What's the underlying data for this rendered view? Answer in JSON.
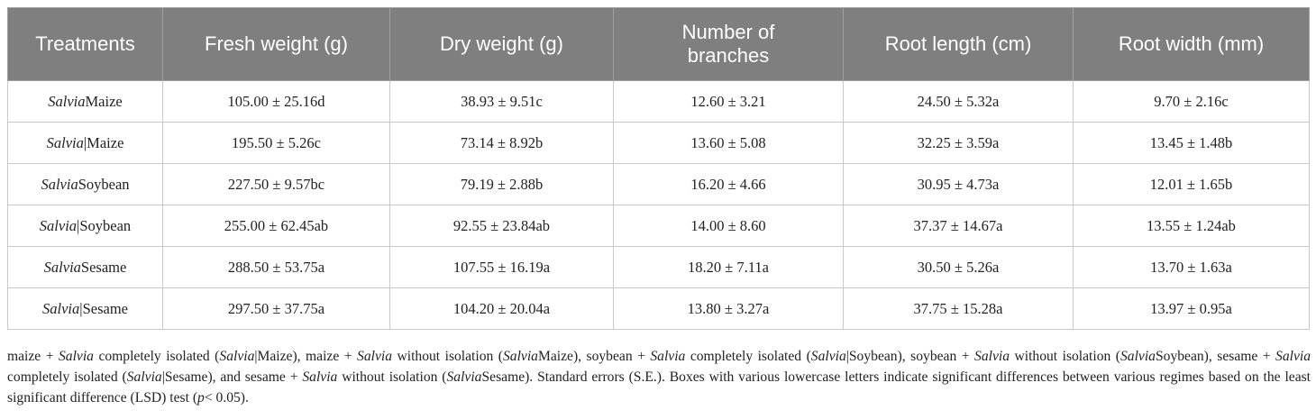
{
  "table": {
    "header": [
      "Treatments",
      "Fresh weight (g)",
      "Dry weight (g)",
      "Number of branches",
      "Root length (cm)",
      "Root width (mm)"
    ],
    "rows": [
      [
        {
          "italic": "Salvia",
          "text": "Maize"
        },
        "105.00 ± 25.16d",
        "38.93 ± 9.51c",
        "12.60 ± 3.21",
        "24.50 ± 5.32a",
        "9.70 ± 2.16c"
      ],
      [
        {
          "italic": "Salvia",
          "text": "|Maize"
        },
        "195.50 ± 5.26c",
        "73.14 ± 8.92b",
        "13.60 ± 5.08",
        "32.25 ± 3.59a",
        "13.45 ± 1.48b"
      ],
      [
        {
          "italic": "Salvia",
          "text": "Soybean"
        },
        "227.50 ± 9.57bc",
        "79.19 ± 2.88b",
        "16.20 ± 4.66",
        "30.95 ± 4.73a",
        "12.01 ± 1.65b"
      ],
      [
        {
          "italic": "Salvia",
          "text": "|Soybean"
        },
        "255.00 ± 62.45ab",
        "92.55 ± 23.84ab",
        "14.00 ± 8.60",
        "37.37 ± 14.67a",
        "13.55 ± 1.24ab"
      ],
      [
        {
          "italic": "Salvia",
          "text": "Sesame"
        },
        "288.50 ± 53.75a",
        "107.55 ± 16.19a",
        "18.20 ± 7.11a",
        "30.50 ± 5.26a",
        "13.70 ± 1.63a"
      ],
      [
        {
          "italic": "Salvia",
          "text": "|Sesame"
        },
        "297.50 ± 37.75a",
        "104.20 ± 20.04a",
        "13.80 ± 3.27a",
        "37.75 ± 15.28a",
        "13.97 ± 0.95a"
      ]
    ]
  },
  "caption": [
    {
      "text": "maize + ",
      "italic": false
    },
    {
      "text": "Salvia",
      "italic": true
    },
    {
      "text": " completely isolated (",
      "italic": false
    },
    {
      "text": "Salvia",
      "italic": true
    },
    {
      "text": "|Maize), maize + ",
      "italic": false
    },
    {
      "text": "Salvia",
      "italic": true
    },
    {
      "text": " without isolation (",
      "italic": false
    },
    {
      "text": "Salvia",
      "italic": true
    },
    {
      "text": "Maize), soybean + ",
      "italic": false
    },
    {
      "text": "Salvia",
      "italic": true
    },
    {
      "text": " completely isolated (",
      "italic": false
    },
    {
      "text": "Salvia",
      "italic": true
    },
    {
      "text": "|Soybean), soybean + ",
      "italic": false
    },
    {
      "text": "Salvia",
      "italic": true
    },
    {
      "text": " without isolation (",
      "italic": false
    },
    {
      "text": "Salvia",
      "italic": true
    },
    {
      "text": "Soybean), sesame + ",
      "italic": false
    },
    {
      "text": "Salvia",
      "italic": true
    },
    {
      "text": " completely isolated (",
      "italic": false
    },
    {
      "text": "Salvia",
      "italic": true
    },
    {
      "text": "|Sesame), and sesame + ",
      "italic": false
    },
    {
      "text": "Salvia",
      "italic": true
    },
    {
      "text": " without isolation (",
      "italic": false
    },
    {
      "text": "Salvia",
      "italic": true
    },
    {
      "text": "Sesame). Standard errors (S.E.). Boxes with various lowercase letters indicate significant differences between various regimes based on the least significant difference (LSD) test (",
      "italic": false
    },
    {
      "text": "p",
      "italic": true
    },
    {
      "text": "< 0.05).",
      "italic": false
    }
  ]
}
